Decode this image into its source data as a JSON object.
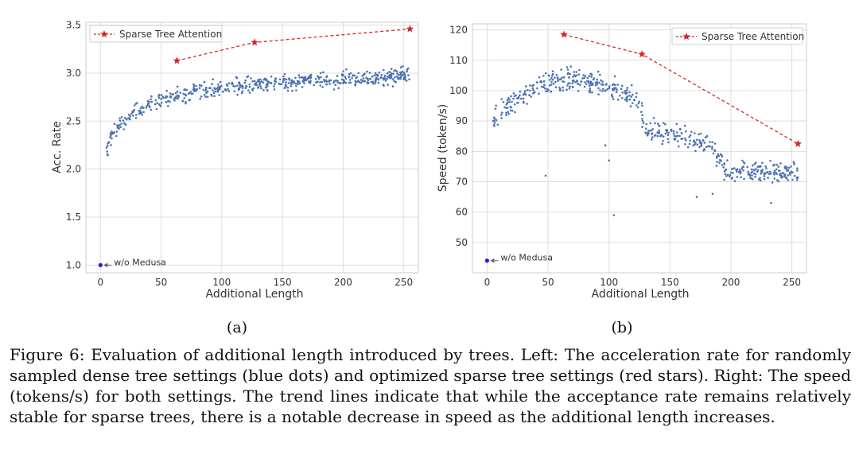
{
  "figure": {
    "caption_label": "Figure 6:",
    "caption_text": "Evaluation of additional length introduced by trees. Left: The acceleration rate for randomly sampled dense tree settings (blue dots) and optimized sparse tree settings (red stars). Right: The speed (tokens/s) for both settings. The trend lines indicate that while the acceptance rate remains relatively stable for sparse trees, there is a notable decrease in speed as the additional length increases."
  },
  "colors": {
    "dense": "#4c72b0",
    "sparse": "#d62728",
    "baseline": "#1f1fe0",
    "grid": "#dddddd",
    "arrow": "#666666"
  },
  "chart_data": [
    {
      "type": "scatter",
      "panel_label": "(a)",
      "xlabel": "Additional Length",
      "ylabel": "Acc. Rate",
      "xlim": [
        -12,
        262
      ],
      "ylim": [
        0.92,
        3.53
      ],
      "xticks": [
        "0",
        "50",
        "100",
        "150",
        "200",
        "250"
      ],
      "yticks": [
        "1.0",
        "1.5",
        "2.0",
        "2.5",
        "3.0",
        "3.5"
      ],
      "legend": "Sparse Tree Attention",
      "legend_position": "top-left",
      "sparse_series": {
        "name": "Sparse Tree Attention",
        "x": [
          63,
          127,
          255
        ],
        "y": [
          3.13,
          3.32,
          3.46
        ]
      },
      "dense_series": {
        "name": "Dense tree (random samples)",
        "trend": [
          [
            5,
            2.2
          ],
          [
            12,
            2.42
          ],
          [
            20,
            2.52
          ],
          [
            30,
            2.6
          ],
          [
            40,
            2.66
          ],
          [
            50,
            2.71
          ],
          [
            70,
            2.78
          ],
          [
            100,
            2.84
          ],
          [
            130,
            2.88
          ],
          [
            160,
            2.91
          ],
          [
            200,
            2.94
          ],
          [
            230,
            2.96
          ],
          [
            255,
            2.98
          ]
        ],
        "count": 560,
        "noise": 0.06,
        "x_range": [
          5,
          255
        ]
      },
      "baseline": {
        "label": "w/o Medusa",
        "x": 0,
        "y": 1.0
      }
    },
    {
      "type": "scatter",
      "panel_label": "(b)",
      "xlabel": "Additional Length",
      "ylabel": "Speed (token/s)",
      "xlim": [
        -12,
        262
      ],
      "ylim": [
        40,
        122
      ],
      "xticks": [
        "0",
        "50",
        "100",
        "150",
        "200",
        "250"
      ],
      "yticks": [
        "50",
        "60",
        "70",
        "80",
        "90",
        "100",
        "110",
        "120"
      ],
      "legend": "Sparse Tree Attention",
      "legend_position": "top-right",
      "sparse_series": {
        "name": "Sparse Tree Attention",
        "x": [
          63,
          127,
          255
        ],
        "y": [
          118.5,
          112,
          82.5
        ]
      },
      "dense_series": {
        "name": "Dense tree (random samples)",
        "trend": [
          [
            5,
            90
          ],
          [
            20,
            96
          ],
          [
            40,
            101
          ],
          [
            55,
            103
          ],
          [
            70,
            104
          ],
          [
            85,
            103
          ],
          [
            100,
            101
          ],
          [
            112,
            99
          ],
          [
            125,
            97
          ],
          [
            130,
            87
          ],
          [
            160,
            85
          ],
          [
            185,
            82
          ],
          [
            195,
            74
          ],
          [
            255,
            73
          ]
        ],
        "count": 560,
        "noise": 2.6,
        "x_range": [
          5,
          255
        ]
      },
      "outliers": [
        [
          5,
          90
        ],
        [
          48,
          72
        ],
        [
          97,
          82
        ],
        [
          100,
          77
        ],
        [
          104,
          59
        ],
        [
          172,
          65
        ],
        [
          185,
          66
        ],
        [
          233,
          63
        ]
      ],
      "baseline": {
        "label": "w/o Medusa",
        "x": 0,
        "y": 44
      }
    }
  ]
}
